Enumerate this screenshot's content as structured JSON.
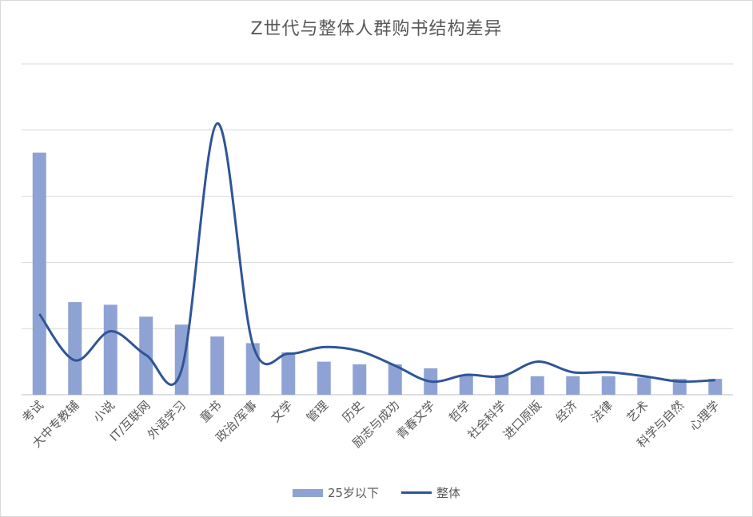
{
  "chart_data": {
    "type": "bar",
    "title": "Z世代与整体人群购书结构差异",
    "categories": [
      "考试",
      "大中专教辅",
      "小说",
      "IT/互联网",
      "外语学习",
      "童书",
      "政治/军事",
      "文学",
      "管理",
      "历史",
      "励志与成功",
      "青春文学",
      "哲学",
      "社会科学",
      "进口原版",
      "经济",
      "法律",
      "艺术",
      "科学与自然",
      "心理学"
    ],
    "series": [
      {
        "name": "25岁以下",
        "type": "bar",
        "color": "#8FA2D4",
        "values": [
          18.3,
          7.0,
          6.8,
          5.9,
          5.3,
          4.4,
          3.9,
          3.2,
          2.5,
          2.3,
          2.3,
          2.0,
          1.5,
          1.5,
          1.4,
          1.4,
          1.4,
          1.3,
          1.2,
          1.2
        ]
      },
      {
        "name": "整体",
        "type": "line",
        "color": "#2F5597",
        "values": [
          6.1,
          2.6,
          4.8,
          3.0,
          1.9,
          20.5,
          3.8,
          3.1,
          3.6,
          3.3,
          2.2,
          1.0,
          1.5,
          1.4,
          2.5,
          1.7,
          1.7,
          1.4,
          1.0,
          1.1
        ]
      }
    ],
    "ylim": [
      0,
      25
    ],
    "grid": true,
    "legend": "bottom"
  }
}
